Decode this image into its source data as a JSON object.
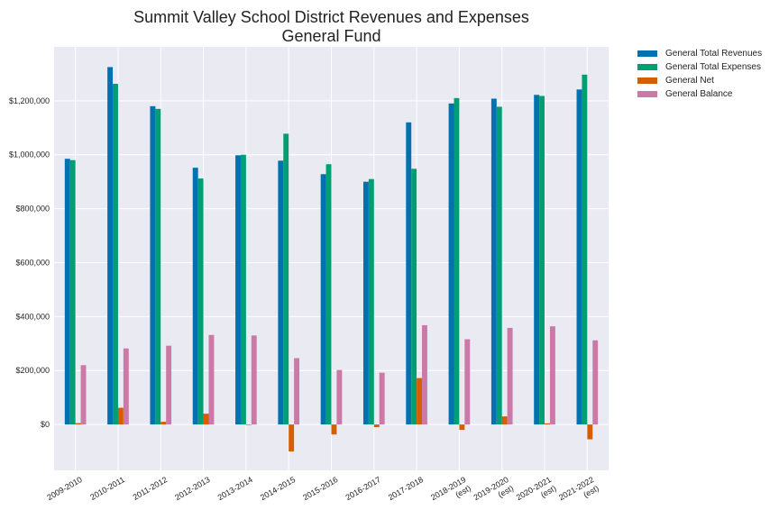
{
  "chart_data": {
    "type": "bar",
    "title": "Summit Valley School District Revenues and Expenses",
    "subtitle": "General Fund",
    "xlabel": "",
    "ylabel": "",
    "categories": [
      "2009-2010",
      "2010-2011",
      "2011-2012",
      "2012-2013",
      "2013-2014",
      "2014-2015",
      "2015-2016",
      "2016-2017",
      "2017-2018",
      "2018-2019\n(est)",
      "2019-2020\n(est)",
      "2020-2021\n(est)",
      "2021-2022\n(est)"
    ],
    "series": [
      {
        "name": "General Total Revenues",
        "color": "#0072b2",
        "values": [
          985000,
          1325000,
          1180000,
          952000,
          998000,
          978000,
          928000,
          900000,
          1120000,
          1190000,
          1208000,
          1222000,
          1242000
        ]
      },
      {
        "name": "General Total Expenses",
        "color": "#009e73",
        "values": [
          980000,
          1263000,
          1170000,
          912000,
          1000000,
          1078000,
          965000,
          910000,
          948000,
          1210000,
          1178000,
          1218000,
          1297000
        ]
      },
      {
        "name": "General Net",
        "color": "#d55e00",
        "values": [
          5000,
          62000,
          10000,
          40000,
          -2000,
          -100000,
          -37000,
          -10000,
          172000,
          -20000,
          30000,
          4000,
          -55000
        ]
      },
      {
        "name": "General Balance",
        "color": "#cc79a7",
        "values": [
          220000,
          282000,
          292000,
          332000,
          330000,
          246000,
          202000,
          192000,
          368000,
          316000,
          358000,
          364000,
          312000
        ]
      }
    ],
    "yticks": [
      0,
      200000,
      400000,
      600000,
      800000,
      1000000,
      1200000
    ],
    "ytick_labels": [
      "$0",
      "$200,000",
      "$400,000",
      "$600,000",
      "$800,000",
      "$1,000,000",
      "$1,200,000"
    ],
    "ylim": [
      -170000,
      1400000
    ],
    "grid": true,
    "legend_position": "outside-right",
    "background": "#eaeaf2"
  }
}
